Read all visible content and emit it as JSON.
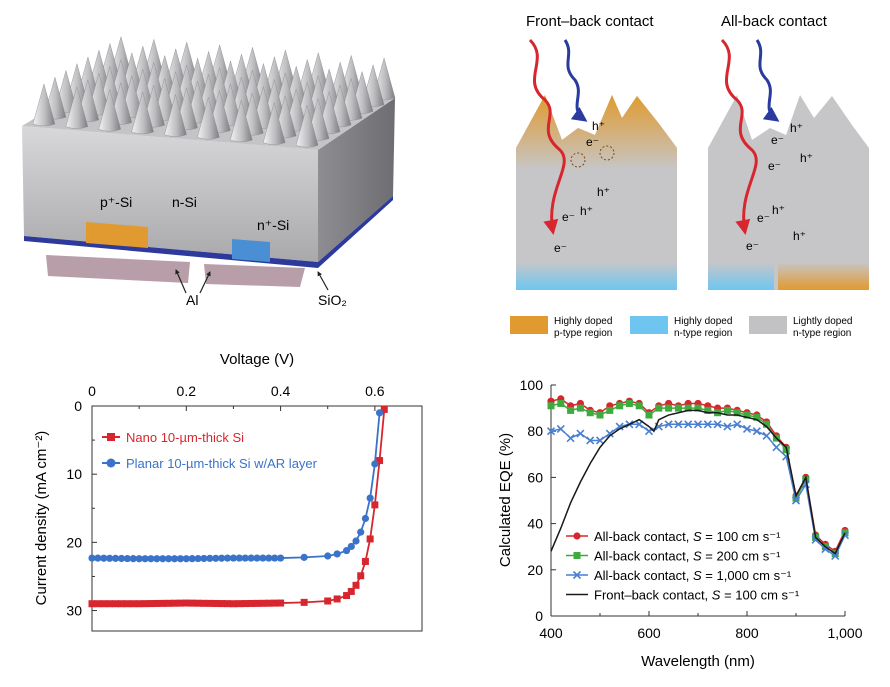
{
  "panel_a": {
    "label_p_si": "p⁺-Si",
    "label_n_si": "n-Si",
    "label_n_plus_si": "n⁺-Si",
    "label_al": "Al",
    "label_sio2": "SiO₂"
  },
  "panel_b": {
    "title_front_back": "Front–back contact",
    "title_all_back": "All-back contact",
    "carrier_h": "h⁺",
    "carrier_e": "e⁻",
    "legend": [
      {
        "line1": "Highly doped",
        "line2": "p-type region",
        "color": "#e09a2f"
      },
      {
        "line1": "Highly doped",
        "line2": "n-type region",
        "color": "#6ec6f0"
      },
      {
        "line1": "Lightly doped",
        "line2": "n-type region",
        "color": "#c2c2c4"
      }
    ]
  },
  "chart_data": [
    {
      "type": "line",
      "title": "",
      "xlabel": "Voltage (V)",
      "ylabel": "Current density (mA cm⁻²)",
      "xlim": [
        0,
        0.7
      ],
      "ylim": [
        0,
        33
      ],
      "y_inverted": true,
      "x_axis_position": "top",
      "xticks": [
        "0",
        "0.2",
        "0.4",
        "0.6"
      ],
      "yticks": [
        "0",
        "10",
        "20",
        "30"
      ],
      "legend_position": "top-left",
      "series": [
        {
          "name": "Nano 10-µm-thick Si",
          "color": "#d7262e",
          "marker": "square",
          "x": [
            0,
            0.1,
            0.2,
            0.3,
            0.4,
            0.45,
            0.5,
            0.52,
            0.54,
            0.55,
            0.56,
            0.57,
            0.58,
            0.59,
            0.6,
            0.61,
            0.62
          ],
          "y": [
            29.0,
            29.0,
            28.9,
            29.0,
            28.9,
            28.8,
            28.6,
            28.3,
            27.8,
            27.2,
            26.3,
            24.9,
            22.8,
            19.5,
            14.5,
            8.0,
            0.5
          ]
        },
        {
          "name": "Planar 10-µm-thick Si w/AR layer",
          "color": "#3a73c8",
          "marker": "circle",
          "x": [
            0,
            0.1,
            0.2,
            0.3,
            0.4,
            0.45,
            0.5,
            0.52,
            0.54,
            0.55,
            0.56,
            0.57,
            0.58,
            0.59,
            0.6,
            0.61
          ],
          "y": [
            22.3,
            22.4,
            22.4,
            22.3,
            22.3,
            22.2,
            22.0,
            21.7,
            21.2,
            20.6,
            19.8,
            18.5,
            16.5,
            13.5,
            8.5,
            1.0
          ]
        }
      ]
    },
    {
      "type": "line",
      "title": "",
      "xlabel": "Wavelength (nm)",
      "ylabel": "Calculated EQE (%)",
      "xlim": [
        400,
        1000
      ],
      "ylim": [
        0,
        100
      ],
      "xticks": [
        "400",
        "600",
        "800",
        "1,000"
      ],
      "yticks": [
        "0",
        "20",
        "40",
        "60",
        "80",
        "100"
      ],
      "legend_position": "bottom-center",
      "series": [
        {
          "name_prefix": "All-back contact, ",
          "s_symbol": "S",
          "s_value": " = 100 cm s⁻¹",
          "color": "#d7262e",
          "marker": "circle",
          "x": [
            400,
            420,
            440,
            460,
            480,
            500,
            520,
            540,
            560,
            580,
            600,
            620,
            640,
            660,
            680,
            700,
            720,
            740,
            760,
            780,
            800,
            820,
            840,
            860,
            880,
            900,
            920,
            940,
            960,
            980,
            1000
          ],
          "y": [
            93,
            94,
            91,
            92,
            89,
            88,
            91,
            92,
            93,
            92,
            88,
            91,
            92,
            91,
            92,
            92,
            91,
            90,
            90,
            89,
            88,
            87,
            84,
            78,
            73,
            52,
            60,
            35,
            31,
            28,
            37
          ]
        },
        {
          "name_prefix": "All-back contact, ",
          "s_symbol": "S",
          "s_value": " = 200 cm s⁻¹",
          "color": "#3faa3e",
          "marker": "square",
          "x": [
            400,
            420,
            440,
            460,
            480,
            500,
            520,
            540,
            560,
            580,
            600,
            620,
            640,
            660,
            680,
            700,
            720,
            740,
            760,
            780,
            800,
            820,
            840,
            860,
            880,
            900,
            920,
            940,
            960,
            980,
            1000
          ],
          "y": [
            91,
            92,
            89,
            90,
            88,
            87,
            89,
            91,
            92,
            91,
            87,
            90,
            90,
            90,
            90,
            90,
            89,
            88,
            89,
            88,
            87,
            86,
            83,
            77,
            72,
            51,
            59,
            34,
            30,
            27,
            36
          ]
        },
        {
          "name_prefix": "All-back contact, ",
          "s_symbol": "S",
          "s_value": " = 1,000 cm s⁻¹",
          "color": "#4a7fd1",
          "marker": "x",
          "x": [
            400,
            420,
            440,
            460,
            480,
            500,
            520,
            540,
            560,
            580,
            600,
            620,
            640,
            660,
            680,
            700,
            720,
            740,
            760,
            780,
            800,
            820,
            840,
            860,
            880,
            900,
            920,
            940,
            960,
            980,
            1000
          ],
          "y": [
            80,
            81,
            77,
            79,
            76,
            76,
            79,
            82,
            83,
            83,
            80,
            82,
            83,
            83,
            83,
            83,
            83,
            83,
            82,
            83,
            81,
            80,
            78,
            73,
            69,
            50,
            57,
            33,
            29,
            26,
            35
          ]
        },
        {
          "name_prefix": "Front–back contact, ",
          "s_symbol": "S",
          "s_value": " = 100 cm s⁻¹",
          "color": "#1a1a1a",
          "marker": "none",
          "x": [
            400,
            420,
            440,
            460,
            480,
            500,
            520,
            540,
            560,
            580,
            600,
            610,
            620,
            640,
            660,
            680,
            700,
            720,
            740,
            760,
            780,
            800,
            820,
            840,
            860,
            880,
            900,
            920,
            940,
            960,
            980,
            1000
          ],
          "y": [
            28,
            38,
            49,
            58,
            66,
            73,
            78,
            81,
            83,
            85,
            82,
            80,
            85,
            87,
            88,
            89,
            89,
            88,
            88,
            87,
            87,
            86,
            85,
            82,
            77,
            73,
            52,
            60,
            34,
            30,
            27,
            36
          ]
        }
      ]
    }
  ]
}
